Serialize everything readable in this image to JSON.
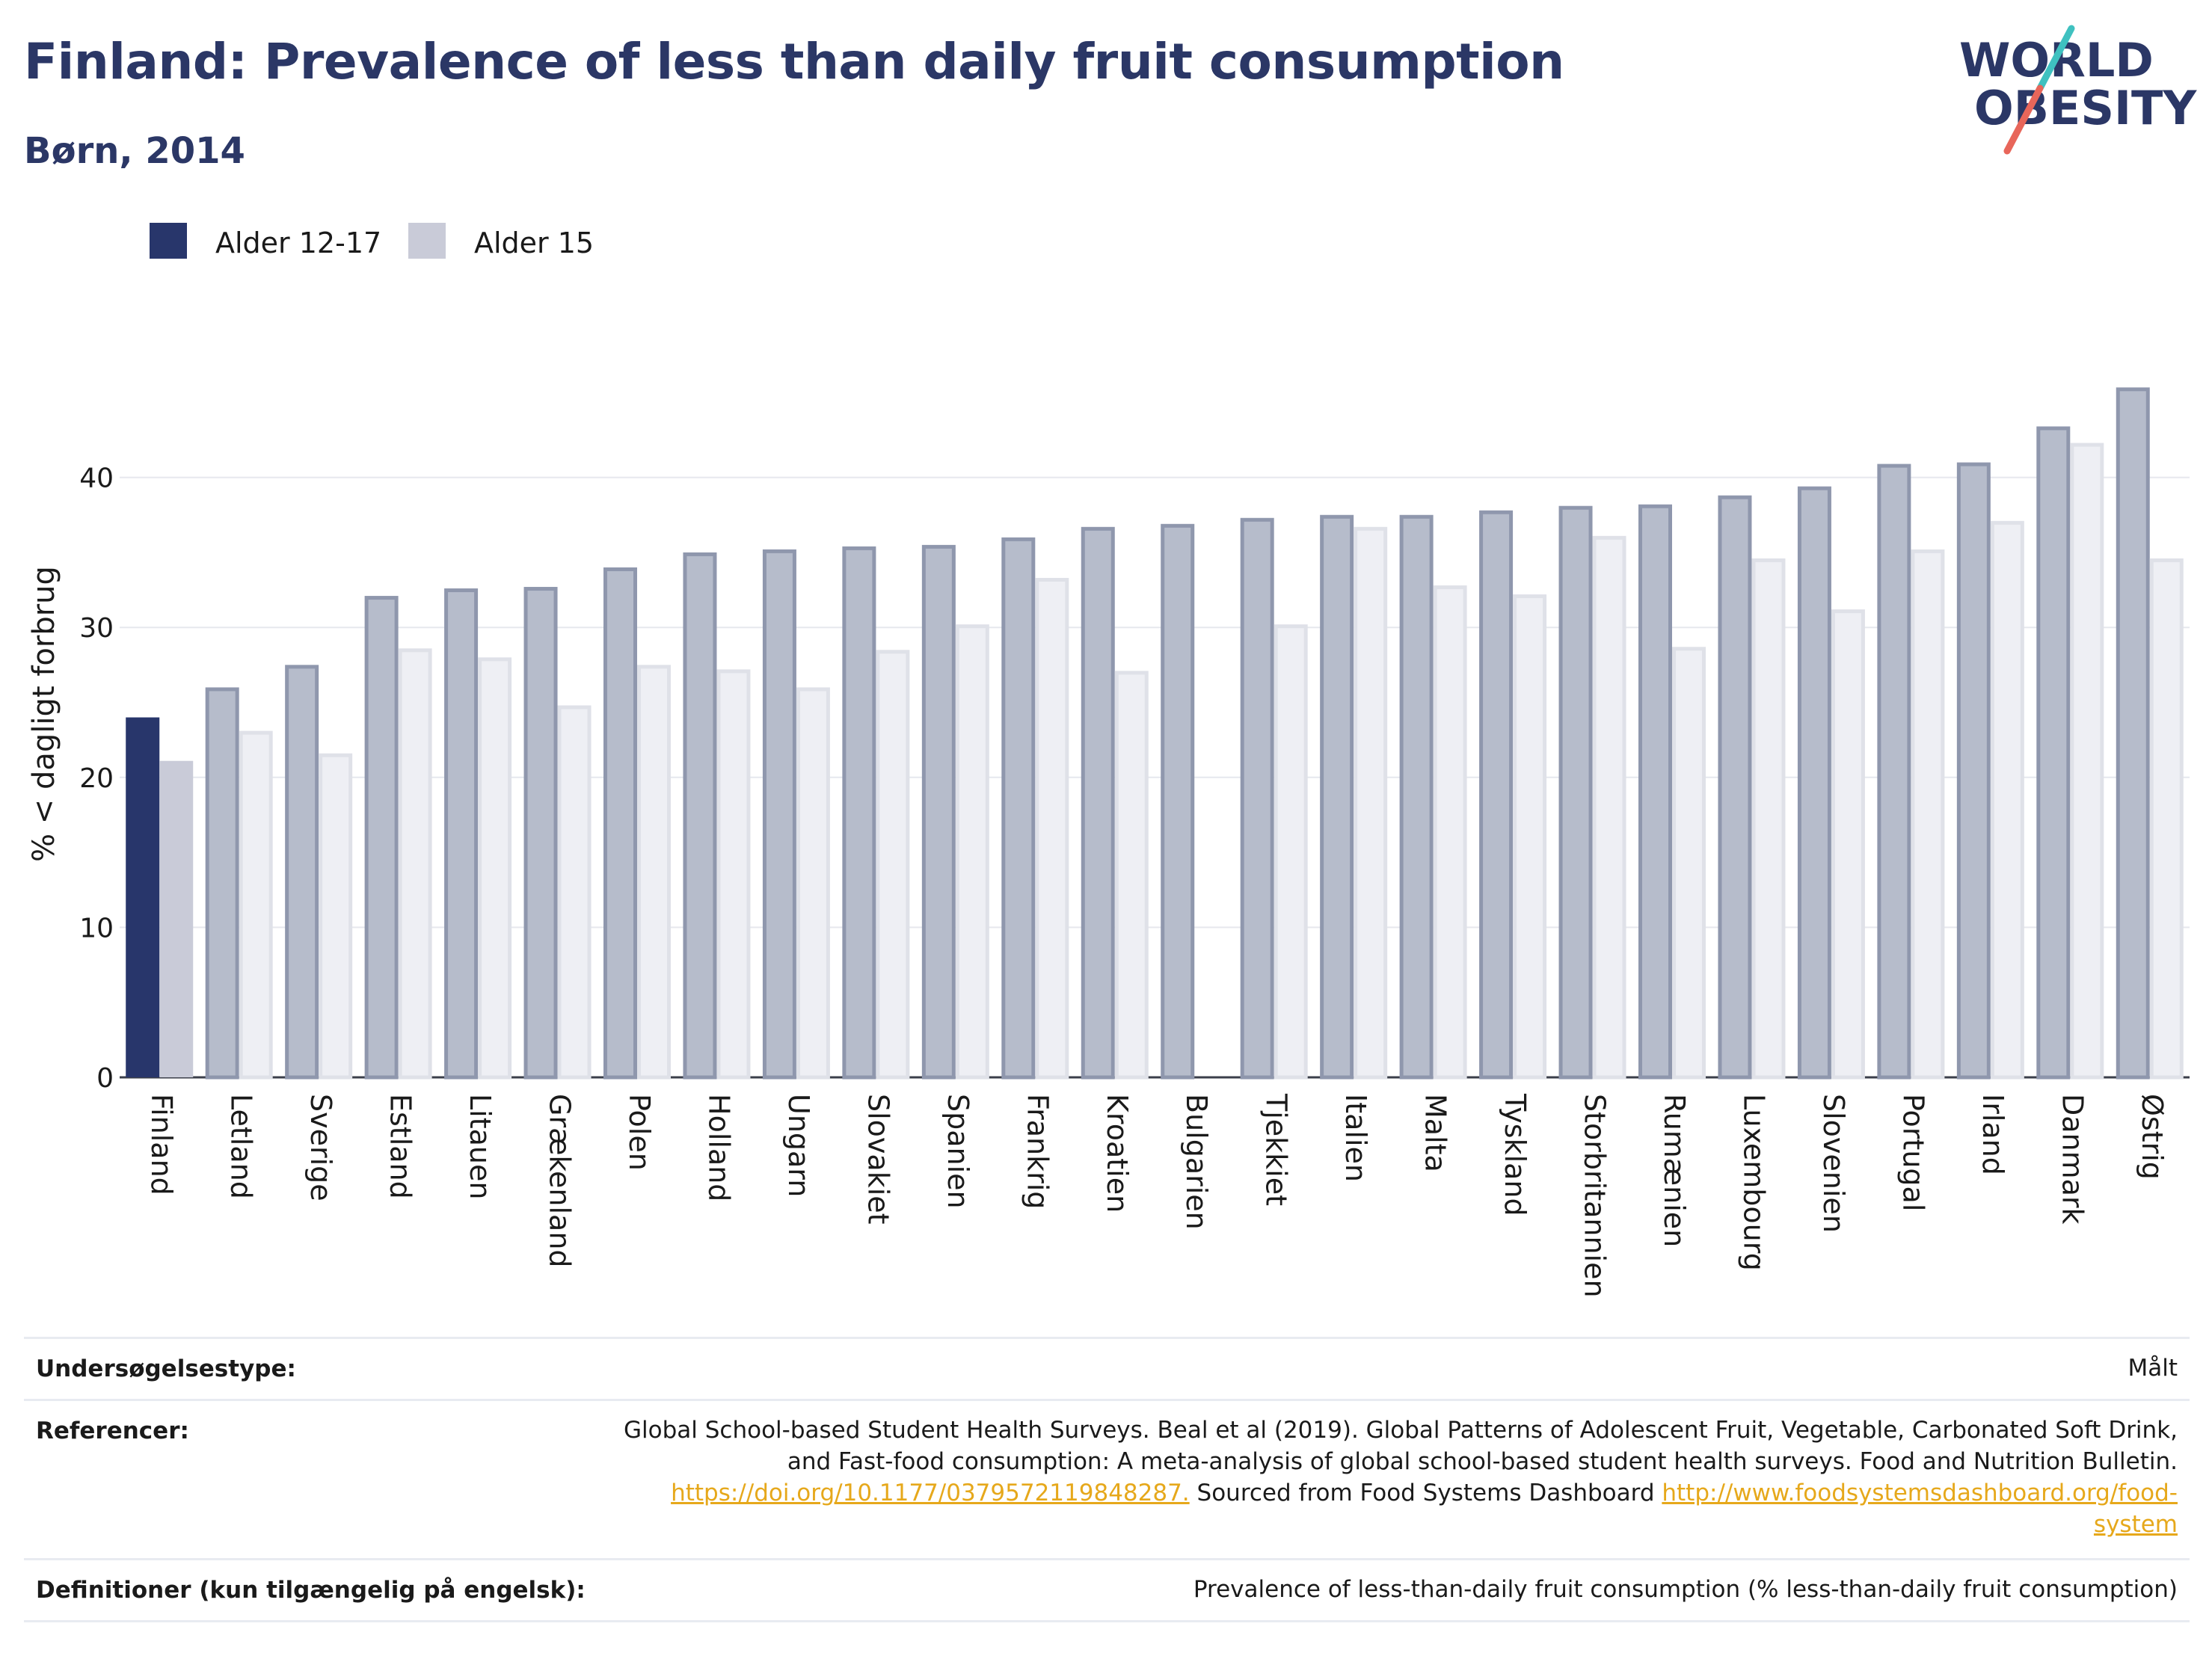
{
  "header": {
    "title": "Finland: Prevalence of less than daily fruit consumption",
    "subtitle": "Børn, 2014",
    "logo_line1": "WORLD",
    "logo_line2": "OBESITY"
  },
  "colors": {
    "title": "#2b3766",
    "highlight_primary": "#28366b",
    "highlight_secondary": "#c9cbd8",
    "other_primary_fill": "#b6bccb",
    "other_primary_stroke": "#8f97ad",
    "other_secondary_fill": "#eeeff4",
    "other_secondary_stroke": "#dfe1e8",
    "logo_teal": "#3fc1c0",
    "logo_coral": "#e8665a",
    "link": "#e6a81b"
  },
  "chart_data": {
    "type": "bar",
    "highlight": "Finland",
    "ylabel": "% < dagligt forbrug",
    "ylim": [
      0,
      50
    ],
    "yticks": [
      0,
      10,
      20,
      30,
      40
    ],
    "grid": true,
    "legend_position": "top-left",
    "categories": [
      "Finland",
      "Letland",
      "Sverige",
      "Estland",
      "Litauen",
      "Grækenland",
      "Polen",
      "Holland",
      "Ungarn",
      "Slovakiet",
      "Spanien",
      "Frankrig",
      "Kroatien",
      "Bulgarien",
      "Tjekkiet",
      "Italien",
      "Malta",
      "Tyskland",
      "Storbritannien",
      "Rumænien",
      "Luxembourg",
      "Slovenien",
      "Portugal",
      "Irland",
      "Danmark",
      "Østrig"
    ],
    "series": [
      {
        "name": "Alder 12-17",
        "values": [
          24.0,
          26.0,
          27.5,
          32.1,
          32.6,
          32.7,
          34.0,
          35.0,
          35.2,
          35.4,
          35.5,
          36.0,
          36.7,
          36.9,
          37.3,
          37.5,
          37.5,
          37.8,
          38.1,
          38.2,
          38.8,
          39.4,
          40.9,
          41.0,
          43.4,
          46.0
        ]
      },
      {
        "name": "Alder 15",
        "values": [
          21.1,
          23.1,
          21.6,
          28.6,
          28.0,
          24.8,
          27.5,
          27.2,
          26.0,
          28.5,
          30.2,
          33.3,
          27.1,
          null,
          30.2,
          36.7,
          32.8,
          32.2,
          36.1,
          28.7,
          34.6,
          31.2,
          35.2,
          37.1,
          42.3,
          34.6
        ]
      }
    ]
  },
  "footer": {
    "survey_type_label": "Undersøgelsestype:",
    "survey_type_value": "Målt",
    "references_label": "Referencer:",
    "references_line1": "Global School-based Student Health Surveys. Beal et al (2019). Global Patterns of Adolescent Fruit, Vegetable, Carbonated Soft Drink,",
    "references_line2": "and Fast-food consumption: A meta-analysis of global school-based student health surveys. Food and Nutrition Bulletin.",
    "references_link1": "https://doi.org/10.1177/0379572119848287.",
    "references_mid": " Sourced from Food Systems Dashboard ",
    "references_link2a": "http://www.foodsystemsdashboard.org/food-",
    "references_link2b": "system",
    "definitions_label": "Definitioner (kun tilgængelig på engelsk):",
    "definitions_value": "Prevalence of less-than-daily fruit consumption (% less-than-daily fruit consumption)"
  }
}
